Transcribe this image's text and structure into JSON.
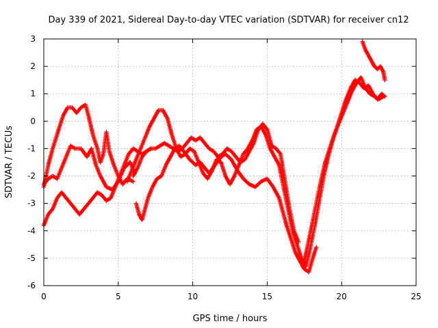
{
  "chart_data": {
    "type": "scatter",
    "title": "Day 339 of 2021, Sidereal Day-to-day VTEC variation (SDTVAR) for receiver cn12",
    "xlabel": "GPS time / hours",
    "ylabel": "SDTVAR / TECUs",
    "xlim": [
      0,
      25
    ],
    "ylim": [
      -6,
      3
    ],
    "xticks": [
      "0",
      "5",
      "10",
      "15",
      "20",
      "25"
    ],
    "yticks": [
      "-6",
      "-5",
      "-4",
      "-3",
      "-2",
      "-1",
      "0",
      "1",
      "2",
      "3"
    ],
    "grid": true,
    "marker": "plus",
    "color": "#ff0000",
    "series": [
      {
        "x": [
          0,
          0.3,
          0.6,
          1.0,
          1.3,
          1.6,
          1.9,
          2.2,
          2.5,
          2.8,
          3.0,
          3.3,
          3.6,
          3.8,
          4.0,
          4.2,
          4.4,
          4.7,
          5.0,
          5.3,
          5.6,
          6.0
        ],
        "y": [
          -2.4,
          -1.6,
          -1.0,
          -0.3,
          0.2,
          0.5,
          0.5,
          0.3,
          0.5,
          0.6,
          0.2,
          -0.5,
          -1.0,
          -1.5,
          -1.2,
          -0.4,
          -1.1,
          -1.6,
          -2.0,
          -2.3,
          -2.1,
          -2.2
        ]
      },
      {
        "x": [
          0,
          0.3,
          0.6,
          0.9,
          1.2,
          1.5,
          1.8,
          2.1,
          2.5,
          2.9,
          3.2,
          3.5,
          3.8,
          4.2,
          4.6,
          5.0,
          5.4,
          5.8,
          6.1
        ],
        "y": [
          -2.3,
          -2.1,
          -2.0,
          -2.1,
          -1.7,
          -1.3,
          -0.9,
          -1.0,
          -1.0,
          -1.3,
          -1.0,
          -1.6,
          -2.0,
          -2.4,
          -2.5,
          -2.2,
          -1.7,
          -1.5,
          -1.9
        ]
      },
      {
        "x": [
          0,
          0.3,
          0.6,
          0.9,
          1.2,
          1.5,
          1.8,
          2.1,
          2.4,
          2.7,
          3.0,
          3.3,
          3.6,
          3.9,
          4.2,
          4.5,
          4.8,
          5.1,
          5.4,
          5.7,
          6.0,
          6.3,
          6.6,
          6.9,
          7.2
        ],
        "y": [
          -3.8,
          -3.4,
          -3.2,
          -2.8,
          -2.6,
          -2.8,
          -3.0,
          -3.2,
          -3.4,
          -3.2,
          -3.0,
          -2.8,
          -2.6,
          -2.7,
          -2.9,
          -2.8,
          -2.4,
          -2.0,
          -1.6,
          -1.2,
          -1.0,
          -1.1,
          -1.2,
          -1.1,
          -1.0
        ]
      },
      {
        "x": [
          6.2,
          6.4,
          6.6,
          6.8,
          7.0,
          7.3,
          7.6,
          7.9,
          8.2,
          8.5,
          8.8,
          9.1,
          9.4,
          9.8,
          10.2,
          10.5,
          10.8,
          11.1,
          11.5,
          11.9,
          12.2,
          12.6,
          13.0,
          13.4,
          13.8,
          14.2,
          14.6,
          15.0,
          15.4,
          15.8,
          16.0,
          16.3,
          16.6,
          16.9,
          17.2,
          17.5,
          17.8,
          18.0,
          18.3
        ],
        "y": [
          -3.0,
          -3.4,
          -3.6,
          -3.2,
          -2.8,
          -2.4,
          -2.1,
          -2.0,
          -1.6,
          -1.3,
          -1.0,
          -0.9,
          -1.1,
          -1.4,
          -1.6,
          -1.5,
          -1.7,
          -1.9,
          -1.6,
          -1.3,
          -1.2,
          -1.4,
          -1.8,
          -2.1,
          -2.3,
          -2.4,
          -2.2,
          -2.1,
          -2.4,
          -2.8,
          -3.2,
          -3.8,
          -4.3,
          -4.8,
          -5.1,
          -5.4,
          -5.5,
          -5.1,
          -4.6
        ]
      },
      {
        "x": [
          5.6,
          5.9,
          6.2,
          6.5,
          6.8,
          7.1,
          7.4,
          7.7,
          8.0,
          8.3,
          8.6,
          8.9,
          9.2,
          9.5,
          9.8,
          10.1,
          10.4,
          10.7,
          11.0,
          11.3,
          11.6,
          11.9,
          12.2,
          12.5,
          12.8,
          13.1,
          13.4,
          13.7,
          14.0,
          14.3,
          14.6,
          14.9,
          15.2,
          15.5,
          15.8,
          16.1,
          16.4,
          16.7,
          17.0,
          17.3,
          17.6,
          17.9,
          18.2,
          18.5,
          18.8,
          19.1,
          19.4,
          19.7,
          20.0,
          20.3,
          20.6,
          20.9,
          21.2,
          21.5,
          21.8,
          22.1,
          22.4,
          22.7,
          22.9
        ],
        "y": [
          -2.2,
          -1.8,
          -1.4,
          -1.0,
          -0.6,
          -0.2,
          0.1,
          0.4,
          0.4,
          0.1,
          -0.5,
          -1.0,
          -1.3,
          -1.2,
          -1.0,
          -1.1,
          -1.5,
          -1.9,
          -2.1,
          -1.8,
          -1.4,
          -1.5,
          -2.0,
          -2.3,
          -2.0,
          -1.6,
          -1.2,
          -1.0,
          -0.7,
          -0.3,
          -0.2,
          -0.5,
          -1.0,
          -1.3,
          -1.6,
          -2.4,
          -3.2,
          -4.0,
          -4.5,
          -5.0,
          -5.3,
          -4.6,
          -3.8,
          -2.9,
          -2.0,
          -1.3,
          -0.7,
          -0.2,
          0.3,
          0.8,
          1.2,
          1.5,
          1.4,
          1.2,
          1.3,
          1.0,
          0.8,
          1.0,
          0.9
        ]
      },
      {
        "x": [
          17.4,
          17.7,
          18.0,
          18.3,
          18.6,
          18.9,
          19.2,
          19.5,
          19.8,
          20.1,
          20.4,
          20.7,
          21.0,
          21.3,
          21.6,
          21.9,
          22.2,
          22.5,
          22.8
        ],
        "y": [
          -5.3,
          -4.6,
          -3.8,
          -3.0,
          -2.2,
          -1.5,
          -1.0,
          -0.5,
          -0.1,
          0.3,
          0.7,
          1.1,
          1.4,
          1.6,
          1.2,
          1.0,
          0.9,
          0.8,
          0.9
        ]
      },
      {
        "x": [
          21.4,
          21.6,
          21.8,
          22.0,
          22.2,
          22.4,
          22.6,
          22.8,
          22.9
        ],
        "y": [
          2.9,
          2.6,
          2.4,
          2.2,
          2.0,
          1.9,
          2.0,
          1.8,
          1.5
        ]
      },
      {
        "x": [
          6.0,
          6.3,
          6.6,
          6.9,
          7.2,
          7.5,
          7.8,
          8.1,
          8.4,
          8.7,
          9.0,
          9.3,
          9.6,
          9.9,
          10.2,
          10.5,
          10.8,
          11.1,
          11.4,
          11.7,
          12.0,
          12.3,
          12.6,
          12.9,
          13.2,
          13.5,
          13.8,
          14.1,
          14.4,
          14.7,
          15.0,
          15.3,
          15.6,
          15.9,
          16.2,
          16.5,
          16.8,
          17.1
        ],
        "y": [
          -2.0,
          -1.7,
          -1.3,
          -1.1,
          -1.0,
          -1.0,
          -0.9,
          -0.8,
          -0.9,
          -1.0,
          -1.1,
          -1.0,
          -0.8,
          -0.6,
          -0.7,
          -0.6,
          -0.8,
          -1.0,
          -1.1,
          -1.3,
          -1.2,
          -1.0,
          -1.1,
          -1.3,
          -1.5,
          -1.4,
          -1.1,
          -0.8,
          -0.3,
          -0.1,
          -0.3,
          -0.9,
          -1.0,
          -1.2,
          -2.2,
          -3.2,
          -4.0,
          -4.4
        ]
      }
    ]
  }
}
